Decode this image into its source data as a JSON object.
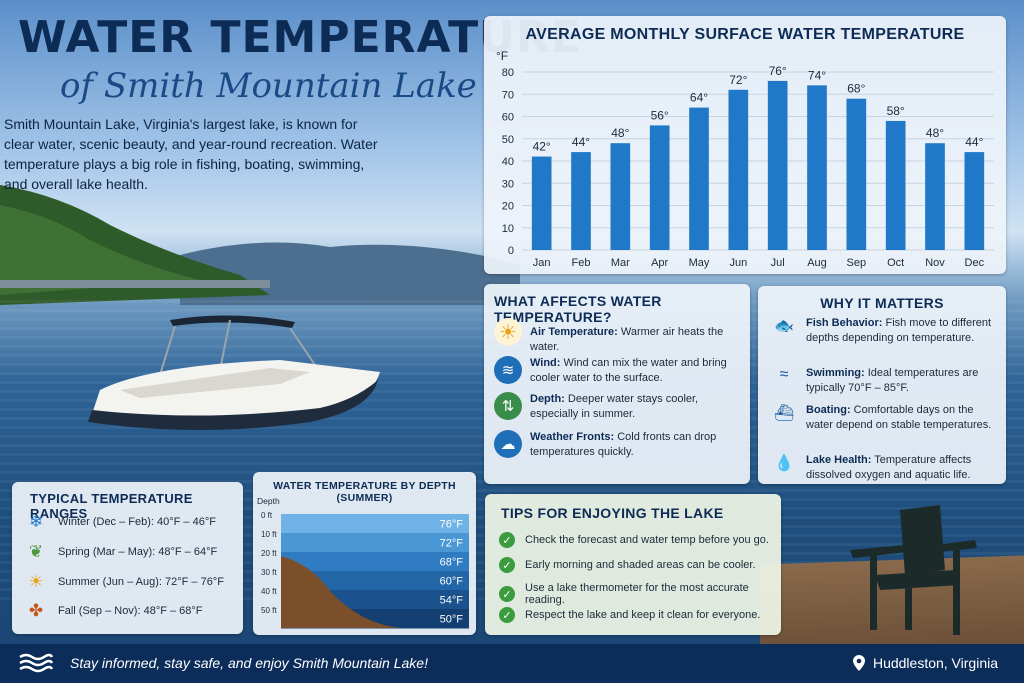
{
  "header": {
    "title": "WATER TEMPERATURE",
    "subtitle": "of Smith Mountain Lake",
    "intro": "Smith Mountain Lake, Virginia's largest lake, is known for clear water, scenic beauty, and year-round recreation. Water temperature plays a big role in fishing, boating, swimming, and overall lake health."
  },
  "chart_data": {
    "type": "bar",
    "title": "AVERAGE MONTHLY SURFACE WATER TEMPERATURE",
    "ylabel": "°F",
    "ylim": [
      0,
      80
    ],
    "yticks": [
      "0",
      "10",
      "20",
      "30",
      "40",
      "50",
      "60",
      "70",
      "80"
    ],
    "categories": [
      "Jan",
      "Feb",
      "Mar",
      "Apr",
      "May",
      "Jun",
      "Jul",
      "Aug",
      "Sep",
      "Oct",
      "Nov",
      "Dec"
    ],
    "values": [
      42,
      44,
      48,
      56,
      64,
      72,
      76,
      74,
      68,
      58,
      48,
      44
    ],
    "labels": [
      "42°",
      "44°",
      "48°",
      "56°",
      "64°",
      "72°",
      "76°",
      "74°",
      "68°",
      "58°",
      "48°",
      "44°"
    ],
    "bar_color": "#1f78c8",
    "grid": true
  },
  "affects": {
    "title": "WHAT AFFECTS WATER TEMPERATURE?",
    "items": [
      {
        "icon": "sun-icon",
        "label": "Air Temperature:",
        "text": "Warmer air heats the water.",
        "color": "#e8a21a"
      },
      {
        "icon": "wind-icon",
        "label": "Wind:",
        "text": "Wind can mix the water and bring cooler water to the surface.",
        "color": "#1f6fb8"
      },
      {
        "icon": "depth-icon",
        "label": "Depth:",
        "text": "Deeper water stays cooler, especially in summer.",
        "color": "#3a8c4a"
      },
      {
        "icon": "cloud-icon",
        "label": "Weather Fronts:",
        "text": "Cold fronts can drop temperatures quickly.",
        "color": "#1f6fb8"
      }
    ]
  },
  "matters": {
    "title": "WHY IT MATTERS",
    "items": [
      {
        "icon": "fish-icon",
        "label": "Fish Behavior:",
        "text": "Fish move to different depths depending on temperature."
      },
      {
        "icon": "swimmer-icon",
        "label": "Swimming:",
        "text": "Ideal temperatures are typically 70°F – 85°F."
      },
      {
        "icon": "boat-icon",
        "label": "Boating:",
        "text": "Comfortable days on the water depend on stable temperatures."
      },
      {
        "icon": "water-drop-icon",
        "label": "Lake Health:",
        "text": "Temperature affects dissolved oxygen and aquatic life."
      }
    ]
  },
  "ranges": {
    "title": "TYPICAL TEMPERATURE RANGES",
    "items": [
      {
        "icon": "snowflake-icon",
        "text": "Winter (Dec – Feb): 40°F – 46°F",
        "color": "#1f78c8"
      },
      {
        "icon": "leaf-icon",
        "text": "Spring (Mar – May): 48°F – 64°F",
        "color": "#4a9a3a"
      },
      {
        "icon": "sun-icon",
        "text": "Summer (Jun – Aug): 72°F – 76°F",
        "color": "#e8a21a"
      },
      {
        "icon": "maple-leaf-icon",
        "text": "Fall (Sep – Nov): 48°F – 68°F",
        "color": "#c8561a"
      }
    ]
  },
  "depth": {
    "title": "WATER TEMPERATURE BY DEPTH (SUMMER)",
    "axis_label": "Depth",
    "depths": [
      "0 ft",
      "10 ft",
      "20 ft",
      "30 ft",
      "40 ft",
      "50 ft"
    ],
    "temps": [
      "76°F",
      "72°F",
      "68°F",
      "60°F",
      "54°F",
      "50°F"
    ]
  },
  "tips": {
    "title": "TIPS FOR ENJOYING THE LAKE",
    "items": [
      "Check the forecast and water temp before you go.",
      "Early morning and shaded areas can be cooler.",
      "Use a lake thermometer for the most accurate reading.",
      "Respect the lake and keep it clean for everyone."
    ]
  },
  "footer": {
    "tagline": "Stay informed, stay safe, and enjoy Smith Mountain Lake!",
    "location": "Huddleston, Virginia"
  }
}
